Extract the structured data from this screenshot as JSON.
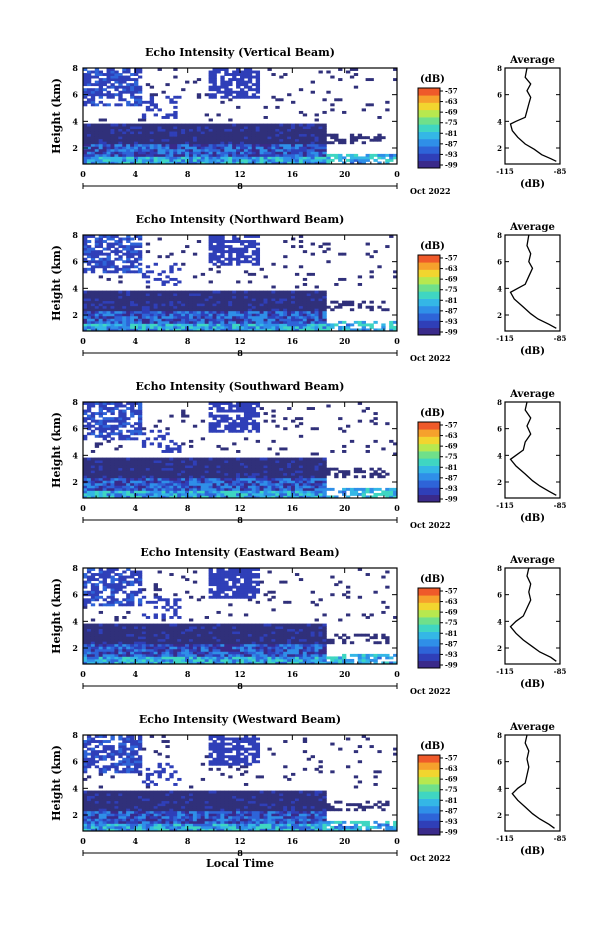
{
  "colors": {
    "scale": [
      "#3a2a8a",
      "#2f3fb8",
      "#2e64d8",
      "#2f8fe8",
      "#34b7e6",
      "#3fd6c2",
      "#6fe08a",
      "#b7e84f",
      "#f2d52f",
      "#f6a12c",
      "#ef5a2a"
    ],
    "background_echo": "#30307a"
  },
  "chart_data": [
    {
      "type": "heatmap",
      "title": "Echo Intensity (Vertical Beam)",
      "ylabel": "Height (km)",
      "xlabel": "",
      "x_ticks": [
        "0",
        "4",
        "8",
        "12",
        "16",
        "20",
        "0"
      ],
      "y_ticks": [
        "2",
        "4",
        "6",
        "8"
      ],
      "xlim": [
        0,
        24
      ],
      "ylim": [
        0.8,
        8
      ],
      "date_label": "8",
      "date_suffix": "Oct 2022",
      "colorbar": {
        "unit": "(dB)",
        "ticks": [
          "-57",
          "-63",
          "-69",
          "-75",
          "-81",
          "-87",
          "-93",
          "-99"
        ]
      },
      "average": {
        "title": "Average",
        "xlabel": "(dB)",
        "x_ticks": [
          "-115",
          "-85"
        ],
        "y_ticks": [
          "2",
          "4",
          "6",
          "8"
        ],
        "profile": [
          [
            -87,
            1.0
          ],
          [
            -90,
            1.2
          ],
          [
            -95,
            1.5
          ],
          [
            -99,
            1.9
          ],
          [
            -104,
            2.3
          ],
          [
            -108,
            2.8
          ],
          [
            -111,
            3.3
          ],
          [
            -112,
            3.8
          ],
          [
            -109,
            4.0
          ],
          [
            -104,
            4.3
          ],
          [
            -103,
            4.8
          ],
          [
            -102,
            5.3
          ],
          [
            -101,
            5.8
          ],
          [
            -103,
            6.3
          ],
          [
            -101,
            6.8
          ],
          [
            -104,
            7.3
          ],
          [
            -103,
            8.0
          ]
        ]
      }
    },
    {
      "type": "heatmap",
      "title": "Echo Intensity (Northward Beam)",
      "ylabel": "Height (km)",
      "xlabel": "",
      "x_ticks": [
        "0",
        "4",
        "8",
        "12",
        "16",
        "20",
        "0"
      ],
      "y_ticks": [
        "2",
        "4",
        "6",
        "8"
      ],
      "xlim": [
        0,
        24
      ],
      "ylim": [
        0.8,
        8
      ],
      "date_label": "8",
      "date_suffix": "Oct 2022",
      "colorbar": {
        "unit": "(dB)",
        "ticks": [
          "-57",
          "-63",
          "-69",
          "-75",
          "-81",
          "-87",
          "-93",
          "-99"
        ]
      },
      "average": {
        "title": "Average",
        "xlabel": "(dB)",
        "x_ticks": [
          "-115",
          "-85"
        ],
        "y_ticks": [
          "2",
          "4",
          "6",
          "8"
        ],
        "profile": [
          [
            -87,
            1.0
          ],
          [
            -91,
            1.3
          ],
          [
            -97,
            1.7
          ],
          [
            -101,
            2.1
          ],
          [
            -105,
            2.6
          ],
          [
            -110,
            3.2
          ],
          [
            -112,
            3.7
          ],
          [
            -108,
            4.0
          ],
          [
            -104,
            4.3
          ],
          [
            -102,
            4.9
          ],
          [
            -100,
            5.5
          ],
          [
            -102,
            6.0
          ],
          [
            -101,
            6.6
          ],
          [
            -103,
            7.2
          ],
          [
            -102,
            8.0
          ]
        ]
      }
    },
    {
      "type": "heatmap",
      "title": "Echo Intensity (Southward Beam)",
      "ylabel": "Height (km)",
      "xlabel": "",
      "x_ticks": [
        "0",
        "4",
        "8",
        "12",
        "16",
        "20",
        "0"
      ],
      "y_ticks": [
        "2",
        "4",
        "6",
        "8"
      ],
      "xlim": [
        0,
        24
      ],
      "ylim": [
        0.8,
        8
      ],
      "date_label": "8",
      "date_suffix": "Oct 2022",
      "colorbar": {
        "unit": "(dB)",
        "ticks": [
          "-57",
          "-63",
          "-69",
          "-75",
          "-81",
          "-87",
          "-93",
          "-99"
        ]
      },
      "average": {
        "title": "Average",
        "xlabel": "(dB)",
        "x_ticks": [
          "-115",
          "-85"
        ],
        "y_ticks": [
          "2",
          "4",
          "6",
          "8"
        ],
        "profile": [
          [
            -87,
            1.0
          ],
          [
            -91,
            1.3
          ],
          [
            -96,
            1.7
          ],
          [
            -100,
            2.1
          ],
          [
            -104,
            2.6
          ],
          [
            -109,
            3.2
          ],
          [
            -112,
            3.7
          ],
          [
            -109,
            4.0
          ],
          [
            -105,
            4.4
          ],
          [
            -104,
            5.0
          ],
          [
            -101,
            5.6
          ],
          [
            -103,
            6.2
          ],
          [
            -101,
            6.8
          ],
          [
            -104,
            7.4
          ],
          [
            -103,
            8.0
          ]
        ]
      }
    },
    {
      "type": "heatmap",
      "title": "Echo Intensity (Eastward Beam)",
      "ylabel": "Height (km)",
      "xlabel": "",
      "x_ticks": [
        "0",
        "4",
        "8",
        "12",
        "16",
        "20",
        "0"
      ],
      "y_ticks": [
        "2",
        "4",
        "6",
        "8"
      ],
      "xlim": [
        0,
        24
      ],
      "ylim": [
        0.8,
        8
      ],
      "date_label": "8",
      "date_suffix": "Oct 2022",
      "colorbar": {
        "unit": "(dB)",
        "ticks": [
          "-57",
          "-63",
          "-69",
          "-75",
          "-81",
          "-87",
          "-93",
          "-99"
        ]
      },
      "average": {
        "title": "Average",
        "xlabel": "(dB)",
        "x_ticks": [
          "-115",
          "-85"
        ],
        "y_ticks": [
          "2",
          "4",
          "6",
          "8"
        ],
        "profile": [
          [
            -87,
            1.0
          ],
          [
            -90,
            1.3
          ],
          [
            -96,
            1.7
          ],
          [
            -100,
            2.1
          ],
          [
            -105,
            2.6
          ],
          [
            -109,
            3.1
          ],
          [
            -112,
            3.6
          ],
          [
            -109,
            4.0
          ],
          [
            -105,
            4.4
          ],
          [
            -103,
            5.0
          ],
          [
            -101,
            5.6
          ],
          [
            -102,
            6.2
          ],
          [
            -101,
            6.8
          ],
          [
            -103,
            7.4
          ],
          [
            -102,
            8.0
          ]
        ]
      }
    },
    {
      "type": "heatmap",
      "title": "Echo Intensity (Westward Beam)",
      "ylabel": "Height (km)",
      "xlabel": "Local Time",
      "x_ticks": [
        "0",
        "4",
        "8",
        "12",
        "16",
        "20",
        "0"
      ],
      "y_ticks": [
        "2",
        "4",
        "6",
        "8"
      ],
      "xlim": [
        0,
        24
      ],
      "ylim": [
        0.8,
        8
      ],
      "date_label": "8",
      "date_suffix": "Oct 2022",
      "colorbar": {
        "unit": "(dB)",
        "ticks": [
          "-57",
          "-63",
          "-69",
          "-75",
          "-81",
          "-87",
          "-93",
          "-99"
        ]
      },
      "average": {
        "title": "Average",
        "xlabel": "(dB)",
        "x_ticks": [
          "-115",
          "-85"
        ],
        "y_ticks": [
          "2",
          "4",
          "6",
          "8"
        ],
        "profile": [
          [
            -88,
            1.0
          ],
          [
            -91,
            1.3
          ],
          [
            -96,
            1.7
          ],
          [
            -100,
            2.1
          ],
          [
            -104,
            2.6
          ],
          [
            -108,
            3.1
          ],
          [
            -111,
            3.6
          ],
          [
            -108,
            4.0
          ],
          [
            -104,
            4.4
          ],
          [
            -103,
            5.0
          ],
          [
            -102,
            5.6
          ],
          [
            -103,
            6.2
          ],
          [
            -102,
            6.8
          ],
          [
            -104,
            7.4
          ],
          [
            -103,
            8.0
          ]
        ]
      }
    }
  ]
}
